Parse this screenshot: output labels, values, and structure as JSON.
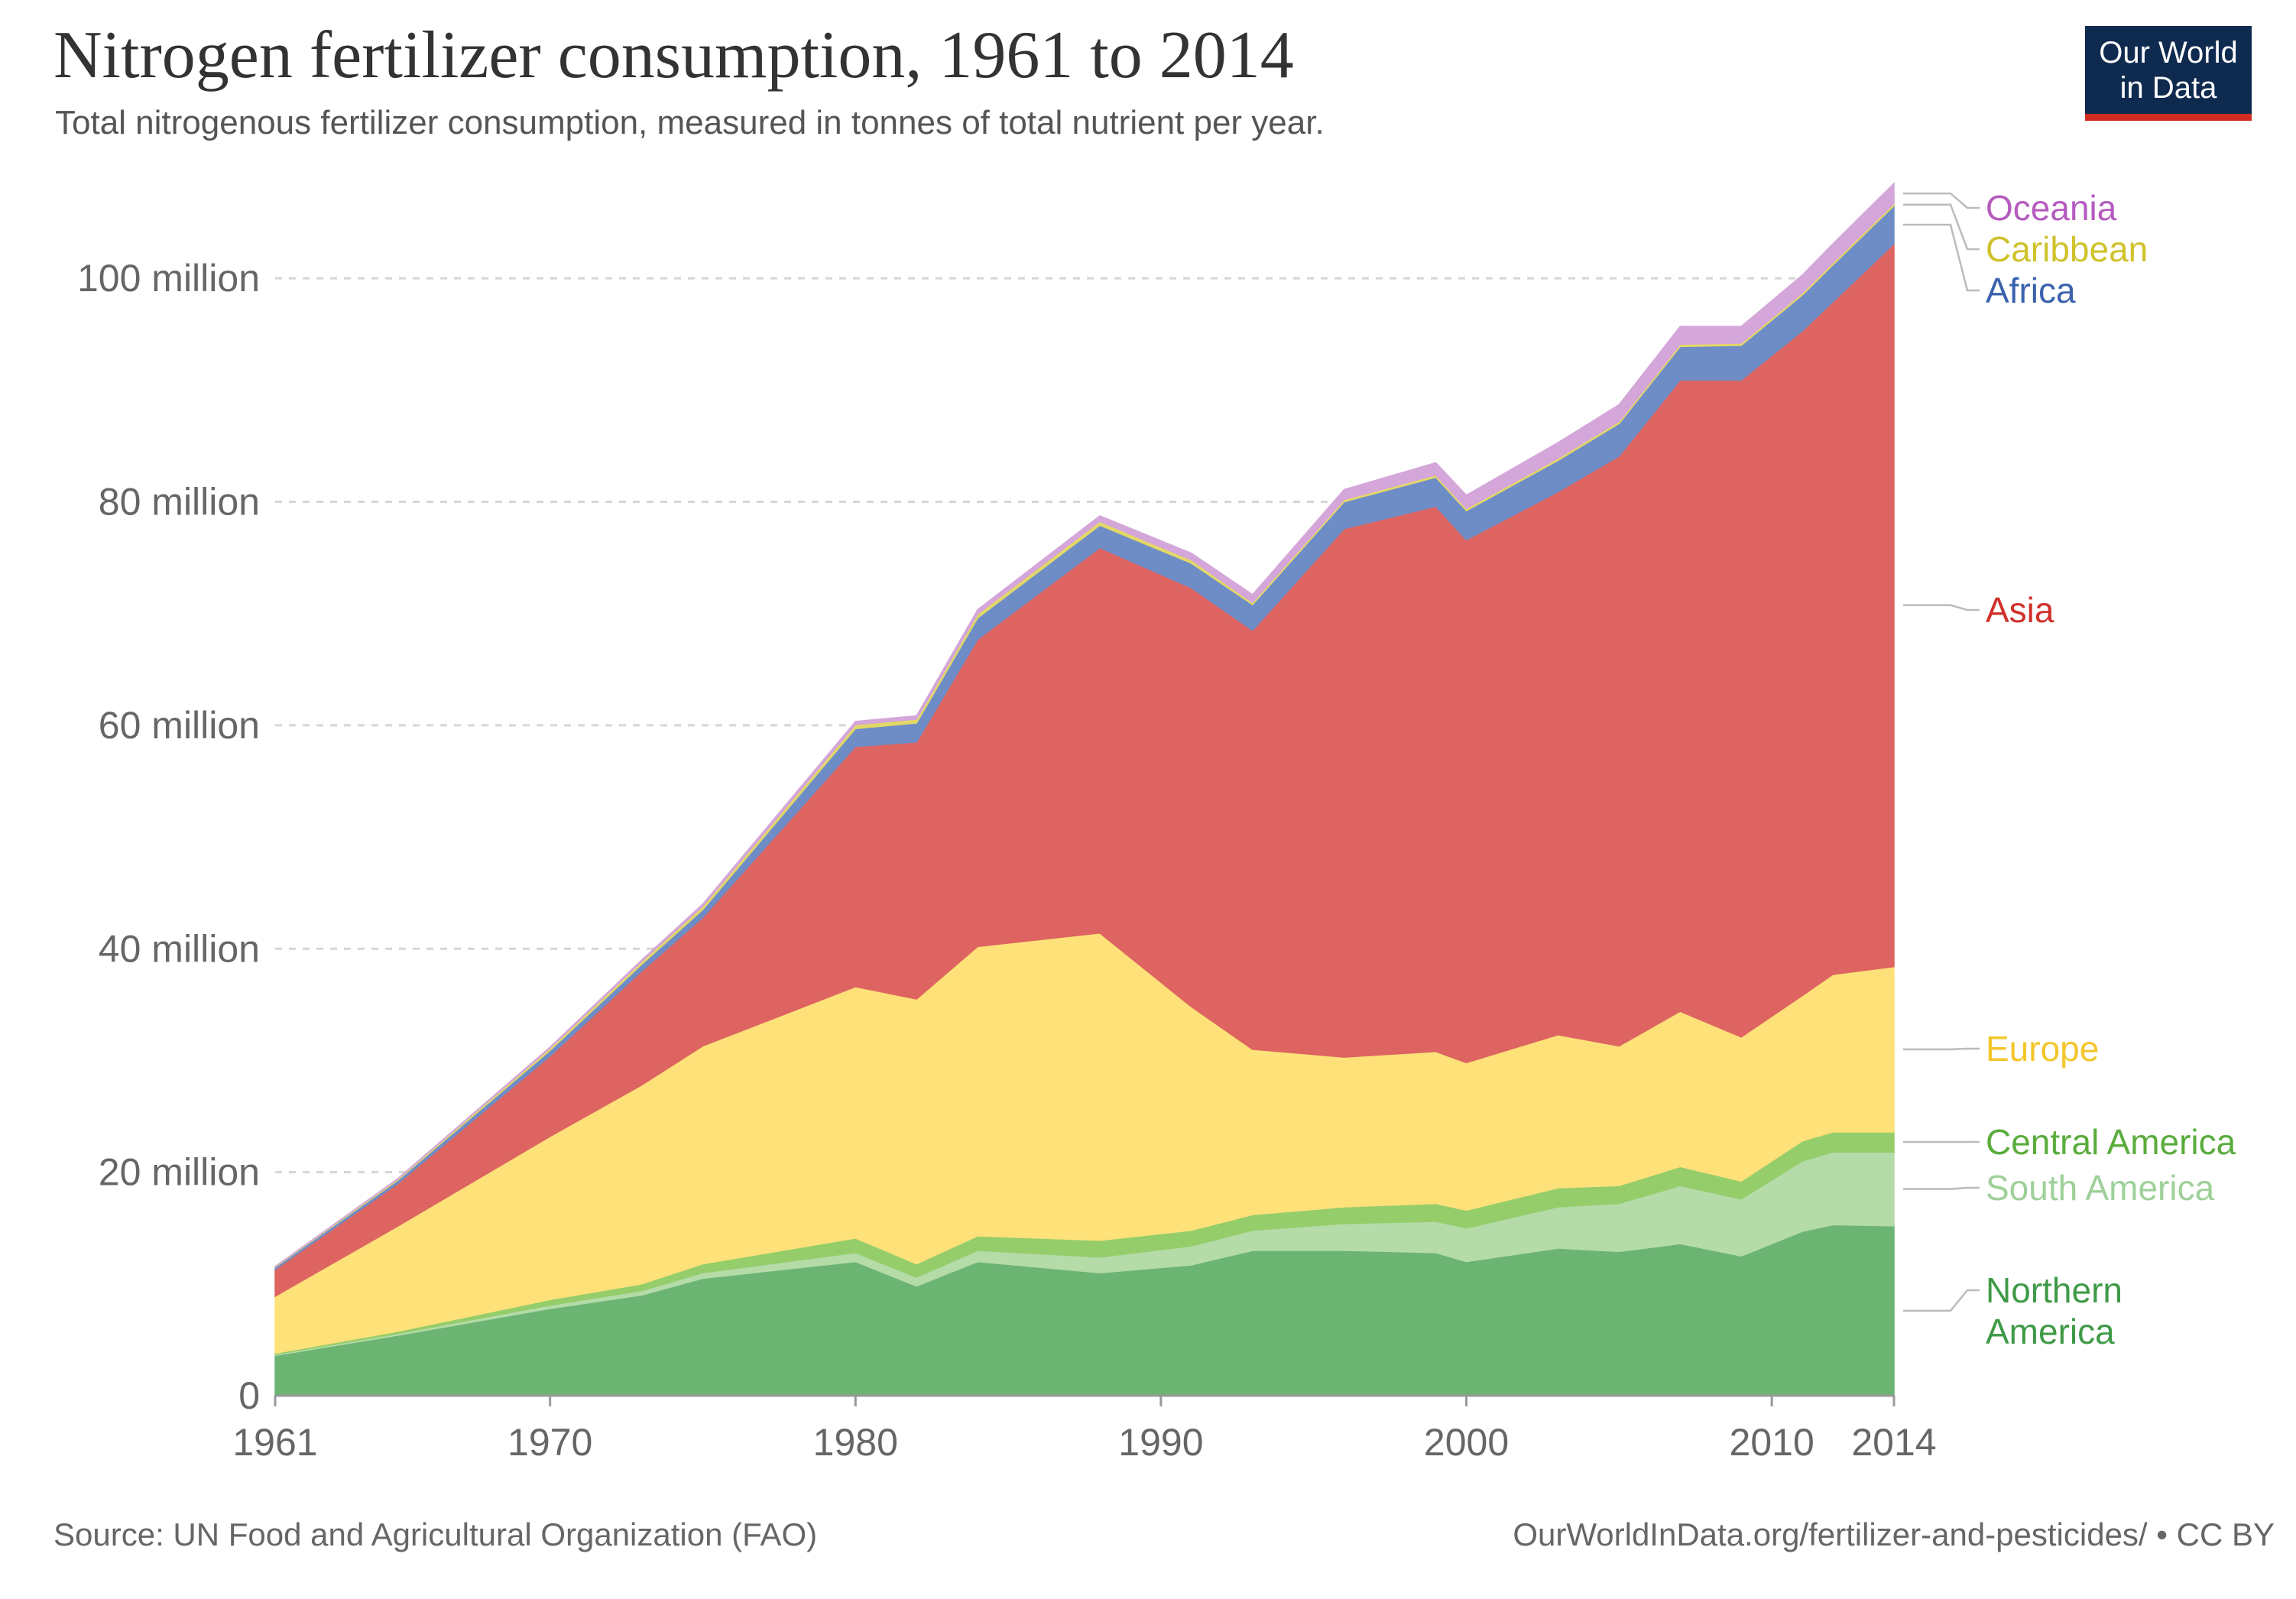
{
  "header": {
    "title": "Nitrogen fertilizer consumption, 1961 to 2014",
    "subtitle": "Total nitrogenous fertilizer consumption, measured in tonnes of total nutrient per year."
  },
  "logo": {
    "line1": "Our World",
    "line2": "in Data"
  },
  "footer": {
    "source": "Source: UN Food and Agricultural Organization (FAO)",
    "url": "OurWorldInData.org/fertilizer-and-pesticides/",
    "license": "• CC BY"
  },
  "chart_data": {
    "type": "area",
    "stacked": true,
    "title": "Nitrogen fertilizer consumption, 1961 to 2014",
    "subtitle": "Total nitrogenous fertilizer consumption, measured in tonnes of total nutrient per year.",
    "xlabel": "",
    "ylabel": "",
    "x": [
      1961,
      1965,
      1970,
      1973,
      1975,
      1980,
      1982,
      1984,
      1988,
      1991,
      1993,
      1996,
      1999,
      2000,
      2003,
      2005,
      2007,
      2009,
      2011,
      2012,
      2014
    ],
    "xlim": [
      1961,
      2014
    ],
    "ylim": [
      0,
      110
    ],
    "unit": "million tonnes",
    "x_ticks": [
      {
        "value": 1961,
        "label": "1961"
      },
      {
        "value": 1970,
        "label": "1970"
      },
      {
        "value": 1980,
        "label": "1980"
      },
      {
        "value": 1990,
        "label": "1990"
      },
      {
        "value": 2000,
        "label": "2000"
      },
      {
        "value": 2010,
        "label": "2010"
      },
      {
        "value": 2014,
        "label": "2014"
      }
    ],
    "y_ticks": [
      {
        "value": 0,
        "label": "0"
      },
      {
        "value": 20,
        "label": "20 million"
      },
      {
        "value": 40,
        "label": "40 million"
      },
      {
        "value": 60,
        "label": "60 million"
      },
      {
        "value": 80,
        "label": "80 million"
      },
      {
        "value": 100,
        "label": "100 million"
      }
    ],
    "grid": true,
    "legend_position": "right",
    "series": [
      {
        "name": "Northern America",
        "label_lines": [
          "Northern",
          "America"
        ],
        "color": "#6cb472",
        "label_color": "#3f9a47",
        "values": [
          3.6,
          5.4,
          7.8,
          9.0,
          10.5,
          12.0,
          9.8,
          12.0,
          11.0,
          11.7,
          13.0,
          13.0,
          12.8,
          12.0,
          13.2,
          12.9,
          13.6,
          12.5,
          14.7,
          15.3,
          15.2
        ]
      },
      {
        "name": "South America",
        "label_lines": [
          "South America"
        ],
        "color": "#b4dba8",
        "label_color": "#9fd09a",
        "values": [
          0.1,
          0.15,
          0.3,
          0.4,
          0.5,
          0.8,
          0.8,
          1.0,
          1.4,
          1.7,
          1.8,
          2.4,
          2.8,
          3.0,
          3.7,
          4.3,
          5.2,
          5.1,
          6.3,
          6.5,
          6.6
        ]
      },
      {
        "name": "Central America",
        "label_lines": [
          "Central America"
        ],
        "color": "#95cd6b",
        "label_color": "#5aac3c",
        "values": [
          0.1,
          0.2,
          0.5,
          0.6,
          0.8,
          1.3,
          1.2,
          1.3,
          1.5,
          1.4,
          1.4,
          1.5,
          1.6,
          1.6,
          1.7,
          1.6,
          1.7,
          1.6,
          1.8,
          1.8,
          1.8
        ]
      },
      {
        "name": "Europe",
        "label_lines": [
          "Europe"
        ],
        "color": "#fee179",
        "label_color": "#f3c62c",
        "values": [
          5.1,
          9.4,
          14.6,
          17.8,
          19.5,
          22.5,
          23.7,
          25.9,
          27.5,
          20.0,
          14.8,
          13.4,
          13.6,
          13.2,
          13.7,
          12.5,
          13.9,
          12.9,
          13.0,
          14.1,
          14.8
        ]
      },
      {
        "name": "Asia",
        "label_lines": [
          "Asia"
        ],
        "color": "#dd6461",
        "label_color": "#d0312b",
        "values": [
          2.4,
          3.8,
          7.2,
          10.2,
          11.5,
          21.5,
          23.0,
          27.5,
          34.5,
          37.5,
          37.5,
          47.3,
          48.8,
          46.8,
          48.6,
          52.8,
          56.5,
          58.8,
          59.5,
          60.2,
          64.7
        ]
      },
      {
        "name": "Africa",
        "label_lines": [
          "Africa"
        ],
        "color": "#6e8dc7",
        "label_color": "#3b62ad",
        "values": [
          0.2,
          0.3,
          0.5,
          0.6,
          0.7,
          1.6,
          1.7,
          1.9,
          2.0,
          2.2,
          2.3,
          2.4,
          2.6,
          2.6,
          2.8,
          2.9,
          3.0,
          3.1,
          3.2,
          3.3,
          3.4
        ]
      },
      {
        "name": "Caribbean",
        "label_lines": [
          "Caribbean"
        ],
        "color": "#e3d866",
        "label_color": "#cfc22b",
        "values": [
          0.05,
          0.1,
          0.2,
          0.25,
          0.3,
          0.35,
          0.35,
          0.35,
          0.35,
          0.3,
          0.2,
          0.2,
          0.2,
          0.2,
          0.2,
          0.2,
          0.2,
          0.2,
          0.2,
          0.2,
          0.2
        ]
      },
      {
        "name": "Oceania",
        "label_lines": [
          "Oceania"
        ],
        "color": "#d4a6da",
        "label_color": "#b55bbf",
        "values": [
          0.02,
          0.05,
          0.1,
          0.15,
          0.2,
          0.3,
          0.3,
          0.4,
          0.5,
          0.6,
          0.7,
          0.9,
          1.1,
          1.2,
          1.4,
          1.5,
          1.6,
          1.5,
          1.6,
          1.7,
          1.8
        ]
      }
    ]
  }
}
